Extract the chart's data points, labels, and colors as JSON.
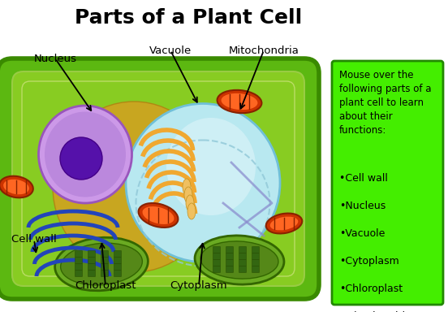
{
  "title": "Parts of a Plant Cell",
  "title_fontsize": 18,
  "title_fontweight": "bold",
  "background_color": "#ffffff",
  "cell_outer_color": "#5cb811",
  "cell_outer_edge": "#3a8a00",
  "cell_inner_color": "#88cc22",
  "cell_inner_edge": "#5cb811",
  "vacuole_color": "#b8e8f0",
  "vacuole_edge": "#70c0d8",
  "nucleus_outer_color": "#cc99e8",
  "nucleus_outer_edge": "#9955bb",
  "nucleus_inner_color": "#6622aa",
  "golgi_color": "#f0a830",
  "er_color": "#3355cc",
  "mito_outer": "#cc3300",
  "mito_inner": "#ff6622",
  "chloro_outer": "#448822",
  "chloro_inner": "#66aa33",
  "chloro_grana": "#336611",
  "legend_bg": "#44ee00",
  "legend_border": "#228800",
  "legend_title": "Mouse over the\nfollowing parts of a\nplant cell to learn\nabout their\nfunctions:",
  "legend_items": [
    "•Cell wall",
    "•Nucleus",
    "•Vacuole",
    "•Cytoplasm",
    "•Chloroplast",
    "•Mitochondria"
  ],
  "legend_fontsize": 8.5,
  "label_fontsize": 9.5,
  "fig_width": 5.52,
  "fig_height": 3.84,
  "dpi": 100
}
